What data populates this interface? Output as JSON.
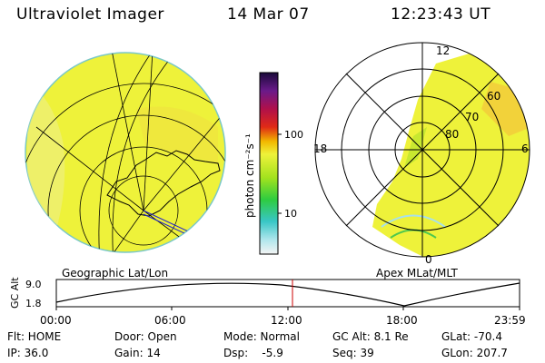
{
  "header": {
    "title": "Ultraviolet Imager",
    "date": "14 Mar 07",
    "time": "12:23:43 UT"
  },
  "colorbar": {
    "label": "photon cm⁻²s⁻¹",
    "ticks": [
      "100",
      "10"
    ]
  },
  "polar": {
    "mlt_labels": [
      "12",
      "18",
      "6",
      "0"
    ],
    "lat_labels": [
      "60",
      "70",
      "80"
    ],
    "caption": "Apex MLat/MLT"
  },
  "geo_caption": "Geographic Lat/Lon",
  "altitude_plot": {
    "ylabel": "GC Alt",
    "yticks": [
      "9.0",
      "1.8"
    ],
    "xticks": [
      "00:00",
      "06:00",
      "12:00",
      "18:00",
      "23:59"
    ]
  },
  "status": {
    "flt": "Flt: HOME",
    "ip": "IP: 36.0",
    "door": "Door: Open",
    "gain": "Gain: 14",
    "mode": "Mode: Normal",
    "dsp": "Dsp:    -5.9",
    "gcalt": "GC Alt: 8.1 Re",
    "seq": "Seq: 39",
    "glat": "GLat: -70.4",
    "glon": "GLon: 207.7"
  },
  "colors": {
    "aurora": "#eef23a",
    "aurora_bright": "#f2d23a",
    "marker": "#cc0000"
  }
}
